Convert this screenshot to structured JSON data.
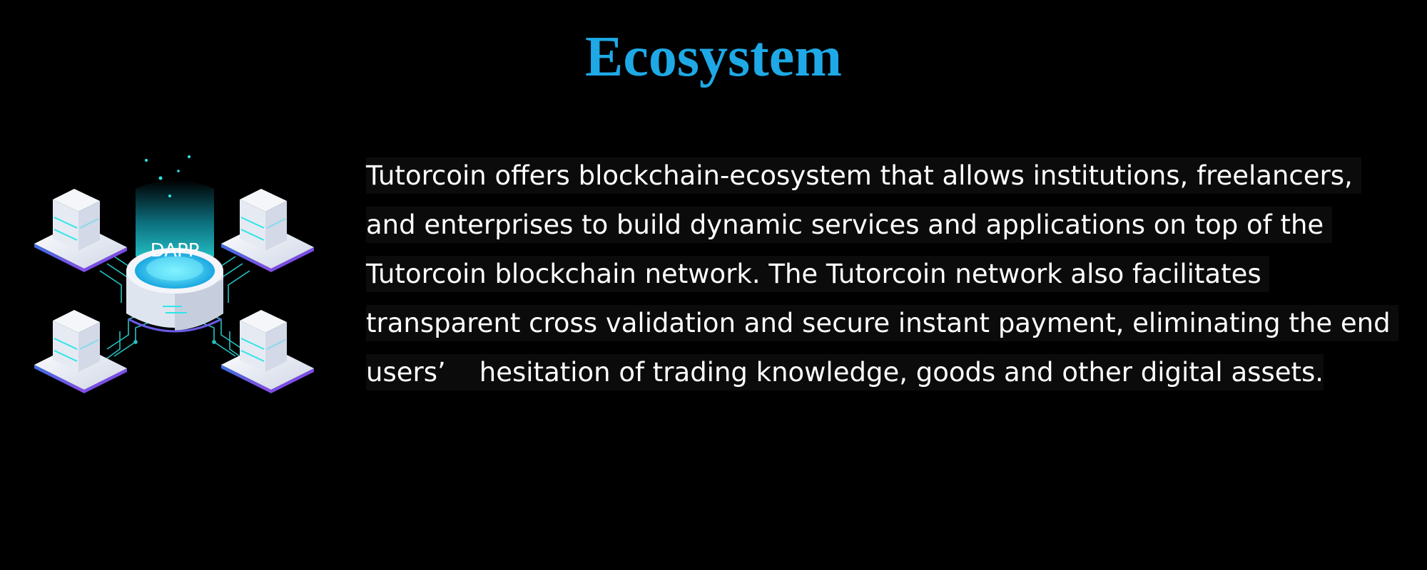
{
  "page": {
    "title": "Ecosystem",
    "title_color": "#1ea9e6",
    "background": "#000000"
  },
  "illustration": {
    "center_label": "DAPP",
    "icon": "dapp-network-icon",
    "node_icon": "server-node-icon",
    "accent_color": "#2ee6e8",
    "glow_color": "#17b8d9"
  },
  "content": {
    "paragraph": "Tutorcoin offers blockchain-ecosystem that allows institutions, freelancers, and enterprises to build dynamic services and applications on top of the Tutorcoin blockchain network. The Tutorcoin network also facilitates transparent cross validation and secure instant payment, eliminating the end users’    hesitation of trading knowledge, goods and other digital assets."
  }
}
